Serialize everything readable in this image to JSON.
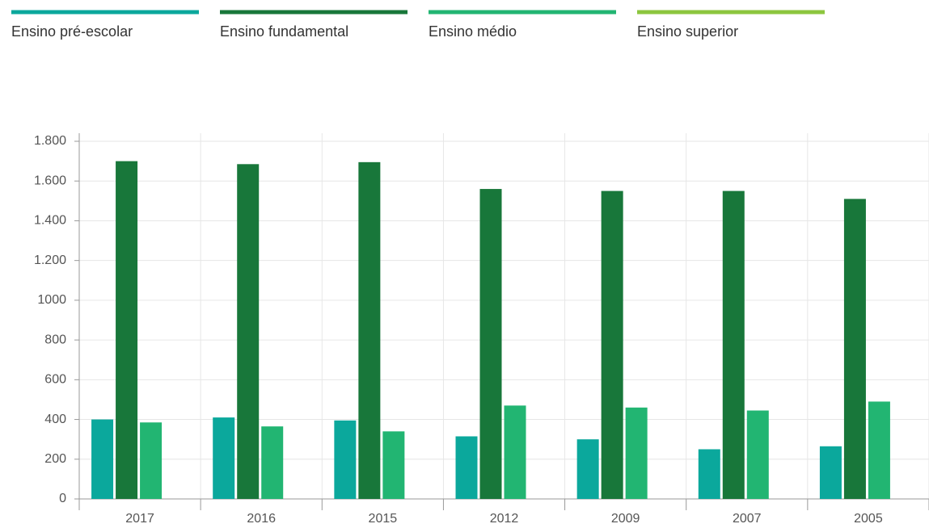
{
  "chart_data": {
    "type": "bar",
    "categories": [
      "2017",
      "2016",
      "2015",
      "2012",
      "2009",
      "2007",
      "2005"
    ],
    "series": [
      {
        "name": "Ensino pré-escolar",
        "color": "#0ba89c",
        "values": [
          400,
          410,
          395,
          315,
          300,
          250,
          265
        ]
      },
      {
        "name": "Ensino fundamental",
        "color": "#18773a",
        "values": [
          1700,
          1685,
          1695,
          1560,
          1550,
          1550,
          1510
        ]
      },
      {
        "name": "Ensino médio",
        "color": "#22b572",
        "values": [
          385,
          365,
          340,
          470,
          460,
          445,
          490
        ]
      },
      {
        "name": "Ensino superior",
        "color": "#8cc63f",
        "values": [
          null,
          null,
          null,
          null,
          null,
          null,
          null
        ]
      }
    ],
    "ylim": [
      0,
      1800
    ],
    "yticks": [
      0,
      200,
      400,
      600,
      800,
      1000,
      {
        "value": 1200,
        "label": "1.200"
      },
      {
        "value": 1400,
        "label": "1.400"
      },
      {
        "value": 1600,
        "label": "1.600"
      },
      {
        "value": 1800,
        "label": "1.800"
      }
    ],
    "grid": true,
    "legend": "top"
  }
}
